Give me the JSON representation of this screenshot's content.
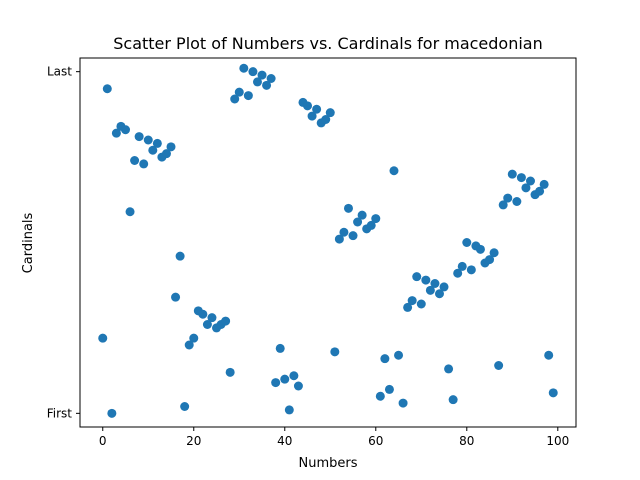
{
  "chart_data": {
    "type": "scatter",
    "title": "Scatter Plot of Numbers vs. Cardinals for macedonian",
    "xlabel": "Numbers",
    "ylabel": "Cardinals",
    "xlim": [
      -5,
      104
    ],
    "ylim": [
      -4,
      104
    ],
    "xticks": [
      0,
      20,
      40,
      60,
      80,
      100
    ],
    "yticks": [
      {
        "value": 0,
        "label": "First"
      },
      {
        "value": 100,
        "label": "Last"
      }
    ],
    "grid": false,
    "point_color": "#1f77b4",
    "x": [
      0,
      1,
      2,
      3,
      4,
      5,
      6,
      7,
      8,
      9,
      10,
      11,
      12,
      13,
      14,
      15,
      16,
      17,
      18,
      19,
      20,
      21,
      22,
      23,
      24,
      25,
      26,
      27,
      28,
      29,
      30,
      31,
      32,
      33,
      34,
      35,
      36,
      37,
      38,
      39,
      40,
      41,
      42,
      43,
      44,
      45,
      46,
      47,
      48,
      49,
      50,
      51,
      52,
      53,
      54,
      55,
      56,
      57,
      58,
      59,
      60,
      61,
      62,
      63,
      64,
      65,
      66,
      67,
      68,
      69,
      70,
      71,
      72,
      73,
      74,
      75,
      76,
      77,
      78,
      79,
      80,
      81,
      82,
      83,
      84,
      85,
      86,
      87,
      88,
      89,
      90,
      91,
      92,
      93,
      94,
      95,
      96,
      97,
      98,
      99
    ],
    "y": [
      22,
      95,
      0,
      82,
      84,
      83,
      59,
      74,
      81,
      73,
      80,
      77,
      79,
      75,
      76,
      78,
      34,
      46,
      2,
      20,
      22,
      30,
      29,
      26,
      28,
      25,
      26,
      27,
      12,
      92,
      94,
      101,
      93,
      100,
      97,
      99,
      96,
      98,
      9,
      19,
      10,
      1,
      11,
      8,
      91,
      90,
      87,
      89,
      85,
      86,
      88,
      18,
      51,
      53,
      60,
      52,
      56,
      58,
      54,
      55,
      57,
      5,
      16,
      7,
      71,
      17,
      3,
      31,
      33,
      40,
      32,
      39,
      36,
      38,
      35,
      37,
      13,
      4,
      41,
      43,
      50,
      42,
      49,
      48,
      44,
      45,
      47,
      14,
      61,
      63,
      70,
      62,
      69,
      66,
      68,
      64,
      65,
      67,
      17,
      6
    ]
  }
}
